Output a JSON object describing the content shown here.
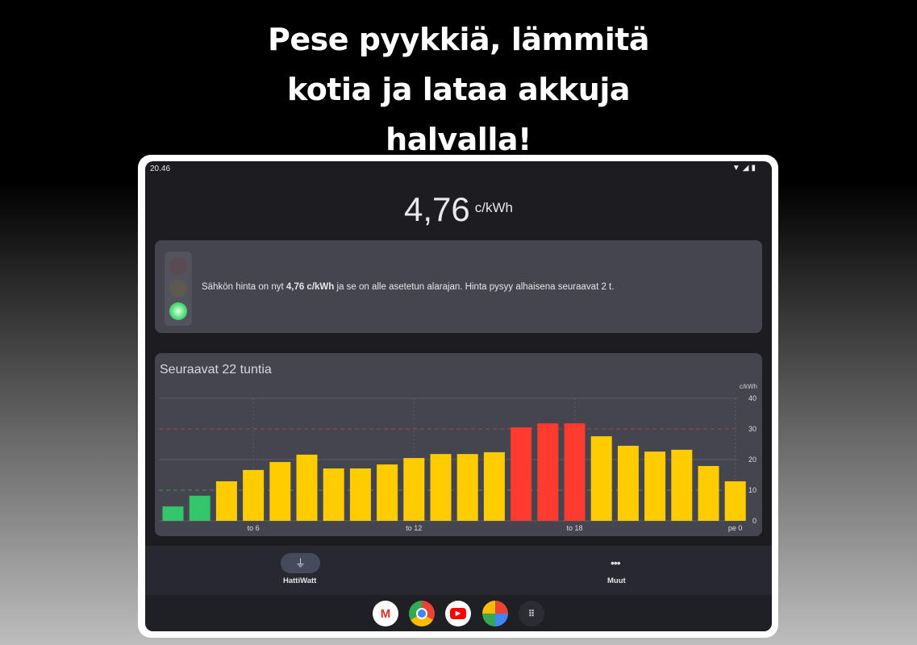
{
  "headline": [
    "Pese pyykkiä, lämmitä",
    "kotia ja lataa akkuja",
    "halvalla!"
  ],
  "status_bar": {
    "time": "20.46",
    "icons": [
      "wifi-icon",
      "signal-icon",
      "battery-icon"
    ]
  },
  "current_price": {
    "value": "4,76",
    "unit": "c/kWh"
  },
  "traffic_light": {
    "active": "green"
  },
  "message": {
    "before": "Sähkön hinta on nyt ",
    "bold": "4,76 c/kWh",
    "after": " ja se on alle asetetun alarajan. Hinta pysyy alhaisena seuraavat 2 t."
  },
  "chart_title": "Seuraavat 22 tuntia",
  "chart_data": {
    "type": "bar",
    "ylabel": "c/kWh",
    "ylim": [
      0,
      40
    ],
    "yticks": [
      0,
      10,
      20,
      30,
      40
    ],
    "x_tick_labels": [
      {
        "index": 3,
        "label": "to 6"
      },
      {
        "index": 9,
        "label": "to 12"
      },
      {
        "index": 15,
        "label": "to 18"
      },
      {
        "index": 21,
        "label": "pe 0"
      }
    ],
    "values": [
      4.7,
      8.2,
      12.9,
      16.6,
      19.2,
      21.6,
      17.1,
      17.1,
      18.4,
      20.5,
      21.8,
      21.8,
      22.4,
      30.5,
      31.8,
      31.8,
      27.6,
      24.5,
      22.6,
      23.2,
      17.9,
      12.9
    ],
    "thresholds": {
      "low": 10,
      "high": 30
    },
    "colors": {
      "low": "#34c66a",
      "mid": "#ffcc00",
      "high": "#ff3b30"
    },
    "grid": true
  },
  "nav": {
    "items": [
      {
        "label": "HattiWatt",
        "icon": "plug-icon",
        "active": true
      },
      {
        "label": "Muut",
        "icon": "more-icon"
      }
    ]
  },
  "dock": {
    "apps": [
      "gmail-icon",
      "chrome-icon",
      "youtube-icon",
      "photos-icon",
      "app-drawer-icon"
    ]
  }
}
